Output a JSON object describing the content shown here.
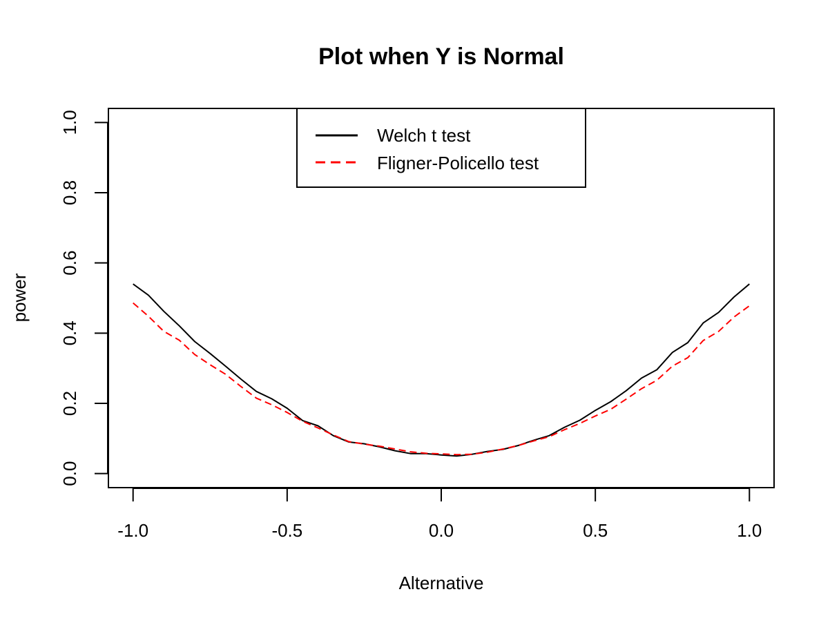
{
  "chart_data": {
    "type": "line",
    "title": "Plot when Y is Normal",
    "xlabel": "Alternative",
    "ylabel": "power",
    "xlim": [
      -1.08,
      1.08
    ],
    "ylim": [
      -0.04,
      1.04
    ],
    "x_ticks": [
      -1.0,
      -0.5,
      0.0,
      0.5,
      1.0
    ],
    "x_tick_labels": [
      "-1.0",
      "-0.5",
      "0.0",
      "0.5",
      "1.0"
    ],
    "y_ticks": [
      0.0,
      0.2,
      0.4,
      0.6,
      0.8,
      1.0
    ],
    "y_tick_labels": [
      "0.0",
      "0.2",
      "0.4",
      "0.6",
      "0.8",
      "1.0"
    ],
    "grid": false,
    "legend_position": "top-center",
    "x": [
      -1.0,
      -0.95,
      -0.9,
      -0.85,
      -0.8,
      -0.75,
      -0.7,
      -0.65,
      -0.6,
      -0.55,
      -0.5,
      -0.45,
      -0.4,
      -0.35,
      -0.3,
      -0.25,
      -0.2,
      -0.15,
      -0.1,
      -0.05,
      0.0,
      0.05,
      0.1,
      0.15,
      0.2,
      0.25,
      0.3,
      0.35,
      0.4,
      0.45,
      0.5,
      0.55,
      0.6,
      0.65,
      0.7,
      0.75,
      0.8,
      0.85,
      0.9,
      0.95,
      1.0
    ],
    "series": [
      {
        "name": "Welch t test",
        "color": "#000000",
        "dash": "solid",
        "values": [
          0.54,
          0.508,
          0.462,
          0.421,
          0.376,
          0.342,
          0.306,
          0.269,
          0.234,
          0.213,
          0.186,
          0.151,
          0.136,
          0.108,
          0.09,
          0.085,
          0.076,
          0.065,
          0.057,
          0.057,
          0.053,
          0.05,
          0.055,
          0.063,
          0.069,
          0.08,
          0.095,
          0.108,
          0.132,
          0.152,
          0.18,
          0.205,
          0.236,
          0.272,
          0.296,
          0.345,
          0.373,
          0.429,
          0.459,
          0.503,
          0.54
        ]
      },
      {
        "name": "Fligner-Policello test",
        "color": "#ff0000",
        "dash": "dashed",
        "values": [
          0.486,
          0.448,
          0.405,
          0.38,
          0.339,
          0.31,
          0.283,
          0.248,
          0.215,
          0.196,
          0.174,
          0.149,
          0.13,
          0.11,
          0.091,
          0.084,
          0.078,
          0.07,
          0.062,
          0.058,
          0.056,
          0.054,
          0.055,
          0.061,
          0.07,
          0.08,
          0.093,
          0.105,
          0.125,
          0.143,
          0.164,
          0.183,
          0.212,
          0.242,
          0.266,
          0.306,
          0.33,
          0.379,
          0.405,
          0.446,
          0.478
        ]
      }
    ]
  }
}
